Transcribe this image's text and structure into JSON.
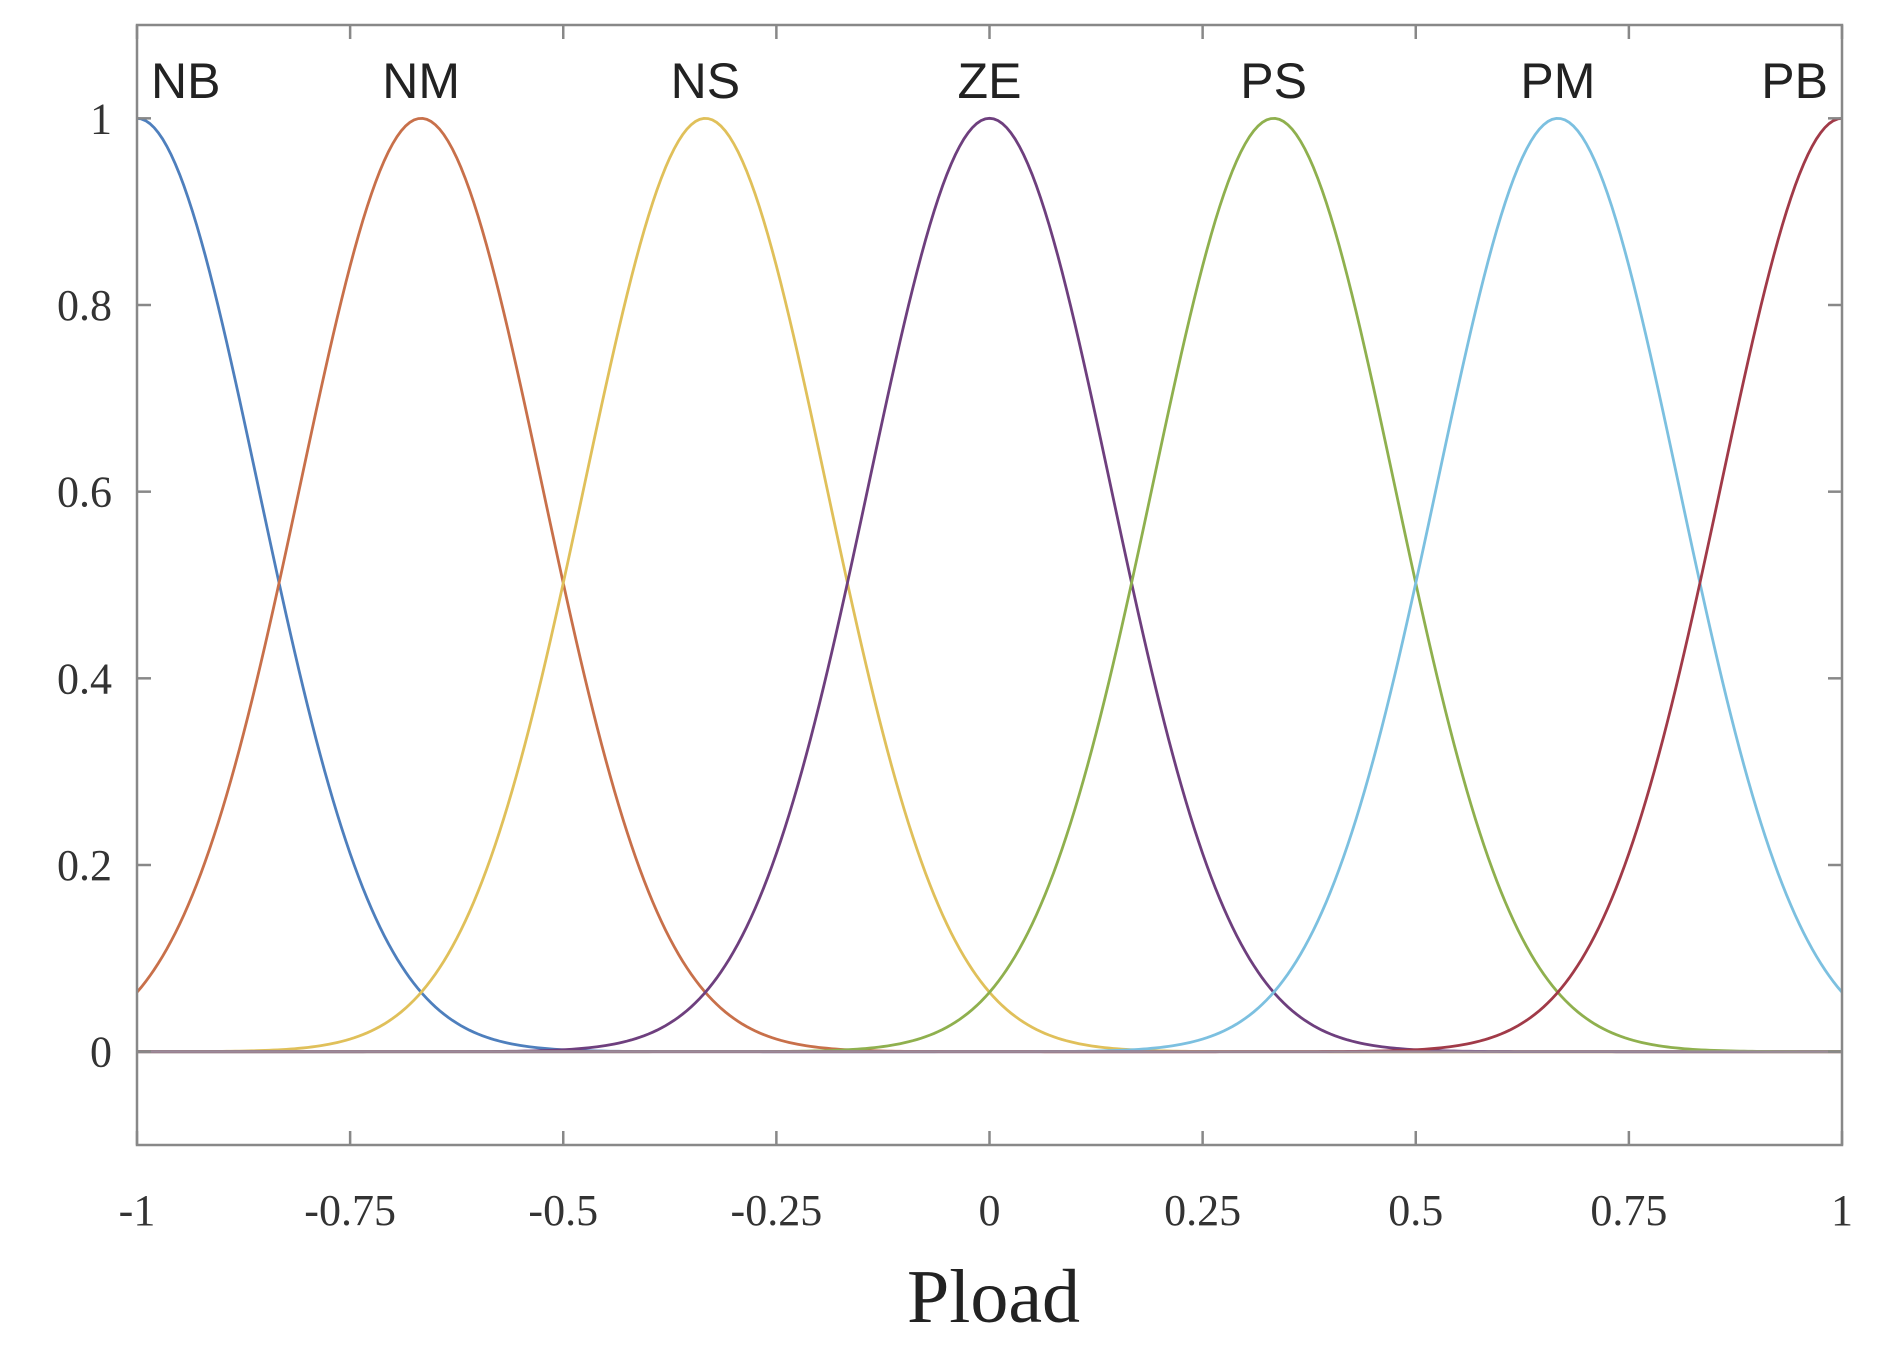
{
  "chart_data": {
    "type": "line",
    "xlabel": "Pload",
    "ylabel": "",
    "xlim": [
      -1,
      1
    ],
    "ylim": [
      -0.1,
      1.1
    ],
    "grid": false,
    "x_ticks": [
      {
        "value": -1,
        "label": "-1"
      },
      {
        "value": -0.75,
        "label": "-0.75"
      },
      {
        "value": -0.5,
        "label": "-0.5"
      },
      {
        "value": -0.25,
        "label": "-0.25"
      },
      {
        "value": 0,
        "label": "0"
      },
      {
        "value": 0.25,
        "label": "0.25"
      },
      {
        "value": 0.5,
        "label": "0.5"
      },
      {
        "value": 0.75,
        "label": "0.75"
      },
      {
        "value": 1,
        "label": "1"
      }
    ],
    "y_ticks": [
      {
        "value": 0,
        "label": "0"
      },
      {
        "value": 0.2,
        "label": "0.2"
      },
      {
        "value": 0.4,
        "label": "0.4"
      },
      {
        "value": 0.6,
        "label": "0.6"
      },
      {
        "value": 0.8,
        "label": "0.8"
      },
      {
        "value": 1,
        "label": "1"
      }
    ],
    "series": [
      {
        "name": "NB",
        "shape": "gaussian",
        "center": -1.0,
        "sigma": 0.142,
        "color": "#4e7fbd"
      },
      {
        "name": "NM",
        "shape": "gaussian",
        "center": -0.6667,
        "sigma": 0.142,
        "color": "#c8704a"
      },
      {
        "name": "NS",
        "shape": "gaussian",
        "center": -0.3333,
        "sigma": 0.142,
        "color": "#e0c05a"
      },
      {
        "name": "ZE",
        "shape": "gaussian",
        "center": 0.0,
        "sigma": 0.142,
        "color": "#6e3f7e"
      },
      {
        "name": "PS",
        "shape": "gaussian",
        "center": 0.3333,
        "sigma": 0.142,
        "color": "#8fb04e"
      },
      {
        "name": "PM",
        "shape": "gaussian",
        "center": 0.6667,
        "sigma": 0.142,
        "color": "#7cc0e0"
      },
      {
        "name": "PB",
        "shape": "gaussian",
        "center": 1.0,
        "sigma": 0.142,
        "color": "#a13a48"
      }
    ]
  }
}
